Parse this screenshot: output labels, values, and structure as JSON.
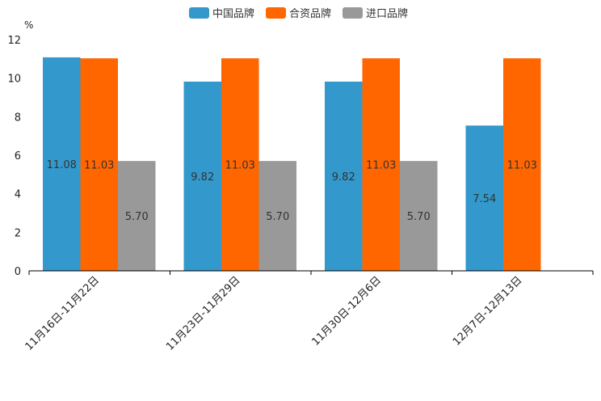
{
  "chart_data": {
    "type": "bar",
    "title": "",
    "ylabel": "%",
    "xlabel": "",
    "ylim": [
      0,
      12
    ],
    "yticks": [
      0,
      2,
      4,
      6,
      8,
      10,
      12
    ],
    "categories": [
      "11月16日-11月22日",
      "11月23日-11月29日",
      "11月30日-12月6日",
      "12月7日-12月13日"
    ],
    "series": [
      {
        "name": "中国品牌",
        "color": "#3399cc",
        "values": [
          11.08,
          9.82,
          9.82,
          7.54
        ],
        "labels": [
          "11.08",
          "9.82",
          "9.82",
          "7.54"
        ]
      },
      {
        "name": "合资品牌",
        "color": "#ff6600",
        "values": [
          11.03,
          11.03,
          11.03,
          11.03
        ],
        "labels": [
          "11.03",
          "11.03",
          "11.03",
          "11.03"
        ]
      },
      {
        "name": "进口品牌",
        "color": "#999999",
        "values": [
          5.7,
          5.7,
          5.7,
          null
        ],
        "labels": [
          "5.70",
          "5.70",
          "5.70",
          ""
        ]
      }
    ],
    "legend_position": "top-center",
    "grid": false
  }
}
